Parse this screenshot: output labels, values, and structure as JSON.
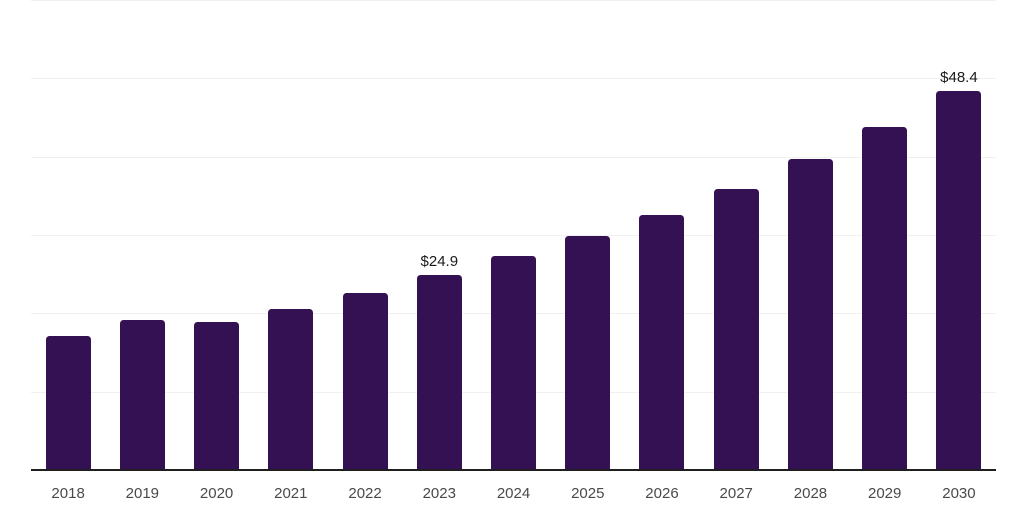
{
  "chart_data": {
    "type": "bar",
    "title": "",
    "categories": [
      "2018",
      "2019",
      "2020",
      "2021",
      "2022",
      "2023",
      "2024",
      "2025",
      "2026",
      "2027",
      "2028",
      "2029",
      "2030"
    ],
    "values": [
      17.1,
      19.2,
      18.9,
      20.6,
      22.6,
      24.9,
      27.3,
      29.9,
      32.6,
      35.9,
      39.7,
      43.8,
      48.4
    ],
    "value_labels": [
      null,
      null,
      null,
      null,
      null,
      "$24.9",
      null,
      null,
      null,
      null,
      null,
      null,
      "$48.4"
    ],
    "ylim": [
      0,
      60
    ],
    "grid_step": 10,
    "grid": true,
    "legend": false,
    "xlabel": "",
    "ylabel": "",
    "y_axis_labels_visible": false,
    "colors": {
      "bar": "#341152",
      "gridline": "#f0f0f0",
      "axis_line": "#1f1f1f",
      "tick_label": "#4a4a4a",
      "value_label": "#1a1a1a",
      "background": "#ffffff"
    }
  }
}
